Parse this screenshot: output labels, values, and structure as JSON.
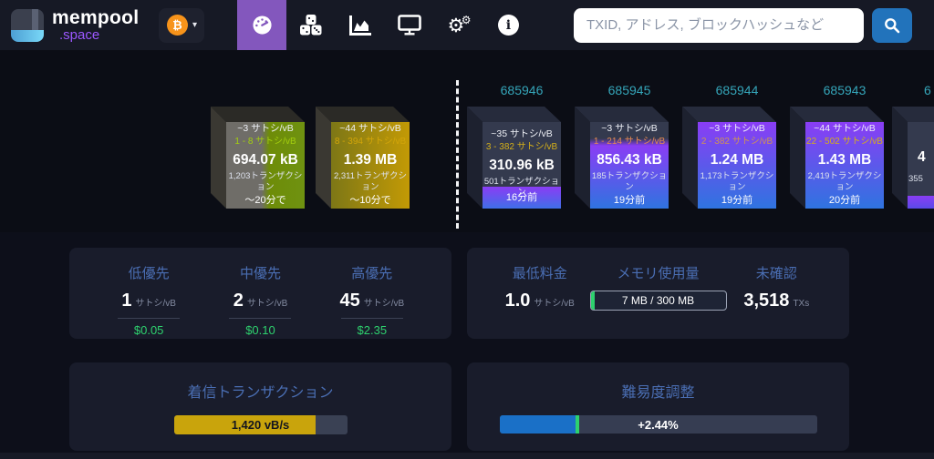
{
  "colors": {
    "accent_purple": "#8357bd",
    "bitcoin_orange": "#f7931a",
    "search_blue": "#2273bb",
    "block_height_cyan": "#35a6ba",
    "heading_blue": "#4a6eb3",
    "usd_green": "#2ed16e",
    "incoming_gold": "#c9a40c",
    "difficulty_blue": "#1a70c7",
    "block_purple_top": "#8a3df5",
    "block_blue_bottom": "#2f74e0",
    "mempool_gray": "#6f6d68",
    "mempool_green": "#6f9211",
    "mempool_gold": "#c39a05",
    "panel_bg": "#191c2b",
    "navbar_bg": "#161925",
    "page_bg": "#0d0f1a"
  },
  "icons": [
    "tachometer-icon",
    "dice-icon",
    "area-chart-icon",
    "tv-icon",
    "gears-icon",
    "info-icon",
    "search-icon",
    "bitcoin-icon",
    "caret-down-icon"
  ],
  "navbar": {
    "logo_title": "mempool",
    "logo_subtitle": ".space",
    "currency_symbol": "₿",
    "caret": "▾",
    "gear_glyph": "⚙",
    "info_glyph": "i",
    "search_placeholder": "TXID, アドレス, ブロックハッシュなど"
  },
  "mempool_blocks": [
    {
      "median_fee": "~3 サトシ/vB",
      "fee_range": "1 - 8 サトシ/vB",
      "size": "694.07 kB",
      "tx_count": "1,203トランザクション",
      "eta": "〜20分で"
    },
    {
      "median_fee": "~44 サトシ/vB",
      "fee_range": "8 - 394 サトシ/vB",
      "size": "1.39 MB",
      "tx_count": "2,311トランザクション",
      "eta": "〜10分で"
    }
  ],
  "mined_blocks": [
    {
      "height": "685946",
      "median_fee": "~35 サトシ/vB",
      "fee_range": "3 - 382 サトシ/vB",
      "size": "310.96 kB",
      "tx_count": "501トランザクション",
      "time": "16分前"
    },
    {
      "height": "685945",
      "median_fee": "~3 サトシ/vB",
      "fee_range": "1 - 214 サトシ/vB",
      "size": "856.43 kB",
      "tx_count": "185トランザクション",
      "time": "19分前"
    },
    {
      "height": "685944",
      "median_fee": "~3 サトシ/vB",
      "fee_range": "2 - 382 サトシ/vB",
      "size": "1.24 MB",
      "tx_count": "1,173トランザクション",
      "time": "19分前"
    },
    {
      "height": "685943",
      "median_fee": "~44 サトシ/vB",
      "fee_range": "22 - 502 サトシ/vB",
      "size": "1.43 MB",
      "tx_count": "2,419トランザクション",
      "time": "20分前"
    },
    {
      "height_fragment": "6",
      "size_fragment": "4",
      "tx_fragment": "355"
    }
  ],
  "fee_panel": {
    "columns": [
      {
        "label": "低優先",
        "value": "1",
        "unit": "サトシ/vB",
        "usd": "$0.05"
      },
      {
        "label": "中優先",
        "value": "2",
        "unit": "サトシ/vB",
        "usd": "$0.10"
      },
      {
        "label": "高優先",
        "value": "45",
        "unit": "サトシ/vB",
        "usd": "$2.35"
      }
    ]
  },
  "stats_panel": {
    "min_fee_label": "最低料金",
    "min_fee_value": "1.0",
    "min_fee_unit": "サトシ/vB",
    "memory_label": "メモリ使用量",
    "memory_text": "7 MB / 300 MB",
    "memory_percent": 3,
    "unconfirmed_label": "未確認",
    "unconfirmed_value": "3,518",
    "unconfirmed_unit": "TXs"
  },
  "incoming_panel": {
    "label": "着信トランザクション",
    "value": "1,420 vB/s",
    "percent": 82
  },
  "difficulty_panel": {
    "label": "難易度調整",
    "value": "+2.44%",
    "percent": 24
  }
}
